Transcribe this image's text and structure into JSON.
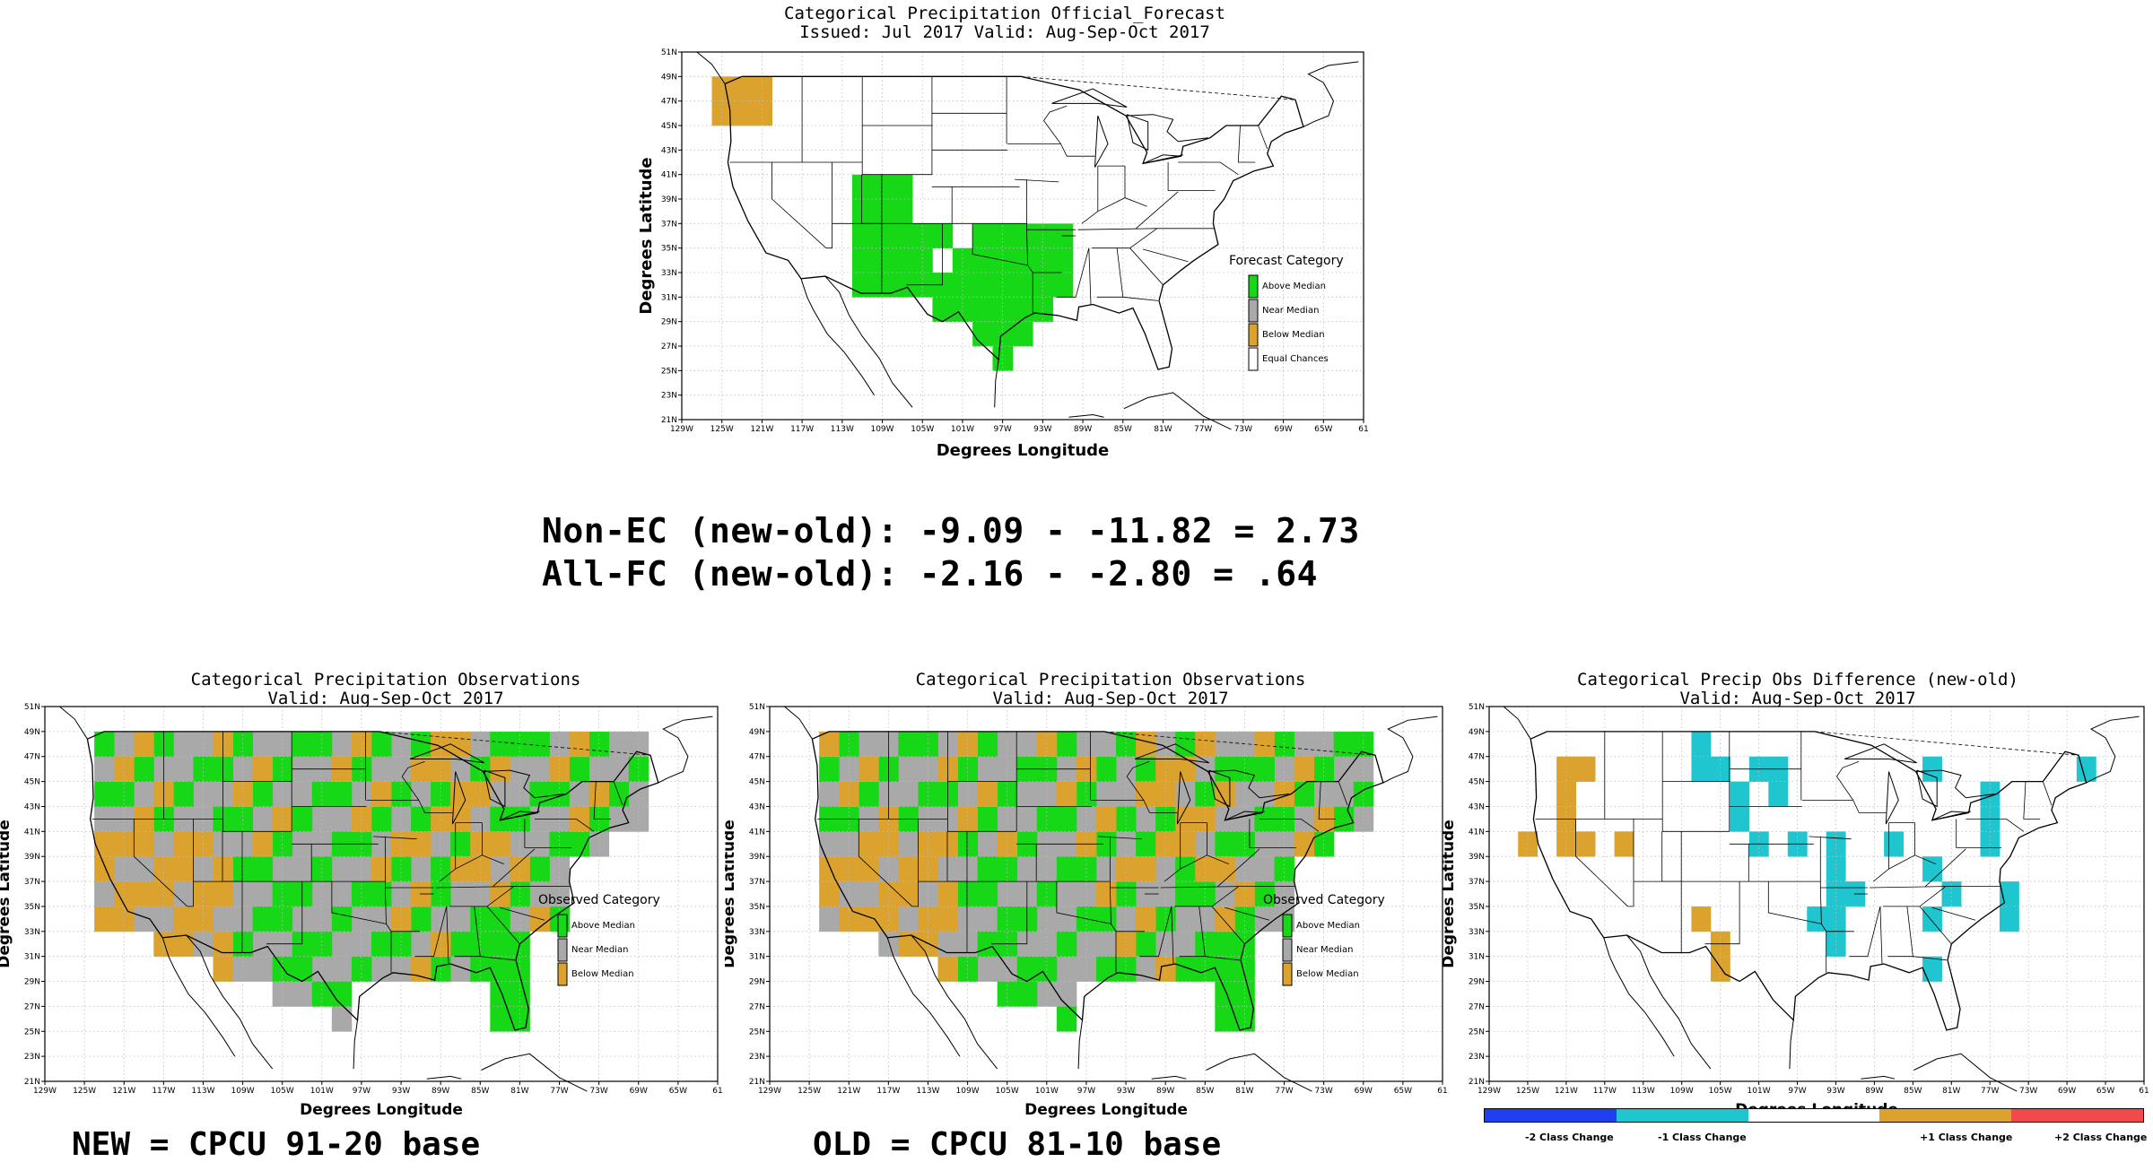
{
  "colors": {
    "above": "#17d817",
    "near": "#a9a9a9",
    "below": "#dba22d",
    "equal": "#ffffff",
    "minus2": "#1f3ff0",
    "minus1": "#1fc6cf",
    "plus1": "#dba22d",
    "plus2": "#f24a4a"
  },
  "axes": {
    "lon_ticks": [
      "129W",
      "125W",
      "121W",
      "117W",
      "113W",
      "109W",
      "105W",
      "101W",
      "97W",
      "93W",
      "89W",
      "85W",
      "81W",
      "77W",
      "73W",
      "69W",
      "65W",
      "61"
    ],
    "lat_ticks": [
      "21N",
      "23N",
      "25N",
      "27N",
      "29N",
      "31N",
      "33N",
      "35N",
      "37N",
      "39N",
      "41N",
      "43N",
      "45N",
      "47N",
      "49N",
      "51N"
    ],
    "xlabel": "Degrees Longitude",
    "ylabel": "Degrees Latitude"
  },
  "forecast_panel": {
    "title_line1": "Categorical Precipitation Official_Forecast",
    "title_line2": "Issued: Jul 2017 Valid: Aug-Sep-Oct 2017",
    "legend_title": "Forecast Category",
    "legend": [
      "Above Median",
      "Near Median",
      "Below Median",
      "Equal Chances"
    ],
    "regions": [
      {
        "category": "below",
        "cells": [
          [
            125,
            48
          ],
          [
            123,
            48
          ],
          [
            121,
            48
          ],
          [
            125,
            46
          ],
          [
            123,
            46
          ],
          [
            121,
            46
          ]
        ]
      },
      {
        "category": "above",
        "cells": [
          [
            111,
            40
          ],
          [
            109,
            40
          ],
          [
            107,
            40
          ],
          [
            111,
            38
          ],
          [
            109,
            38
          ],
          [
            107,
            38
          ],
          [
            111,
            36
          ],
          [
            109,
            36
          ],
          [
            107,
            36
          ],
          [
            105,
            36
          ],
          [
            103,
            36
          ],
          [
            111,
            34
          ],
          [
            109,
            34
          ],
          [
            107,
            34
          ],
          [
            105,
            34
          ],
          [
            99,
            36
          ],
          [
            97,
            36
          ],
          [
            95,
            36
          ],
          [
            93,
            36
          ],
          [
            91,
            36
          ],
          [
            111,
            32
          ],
          [
            109,
            32
          ],
          [
            107,
            32
          ],
          [
            105,
            32
          ],
          [
            101,
            34
          ],
          [
            99,
            34
          ],
          [
            97,
            34
          ],
          [
            95,
            34
          ],
          [
            93,
            34
          ],
          [
            91,
            34
          ],
          [
            103,
            32
          ],
          [
            101,
            32
          ],
          [
            99,
            32
          ],
          [
            97,
            32
          ],
          [
            95,
            32
          ],
          [
            93,
            32
          ],
          [
            91,
            32
          ],
          [
            103,
            30
          ],
          [
            101,
            30
          ],
          [
            99,
            30
          ],
          [
            97,
            30
          ],
          [
            95,
            30
          ],
          [
            93,
            30
          ],
          [
            99,
            28
          ],
          [
            97,
            28
          ],
          [
            95,
            28
          ],
          [
            97,
            26
          ]
        ]
      }
    ]
  },
  "stats": {
    "line1": "Non-EC (new-old): -9.09 - -11.82 = 2.73",
    "line2": "All-FC (new-old): -2.16 - -2.80 = .64"
  },
  "new_panel": {
    "title_line1": "Categorical Precipitation Observations",
    "title_line2": "Valid: Aug-Sep-Oct 2017",
    "legend_title": "Observed Category",
    "legend": [
      "Above Median",
      "Near Median",
      "Below Median"
    ],
    "caption": "NEW = CPCU 91-20 base"
  },
  "old_panel": {
    "title_line1": "Categorical Precipitation Observations",
    "title_line2": "Valid: Aug-Sep-Oct 2017",
    "legend_title": "Observed Category",
    "legend": [
      "Above Median",
      "Near Median",
      "Below Median"
    ],
    "caption": "OLD = CPCU 81-10 base"
  },
  "diff_panel": {
    "title_line1": "Categorical Precip Obs Difference (new-old)",
    "title_line2": "Valid: Aug-Sep-Oct 2017",
    "colorbar": [
      "-2 Class Change",
      "-1 Class Change",
      "+1 Class Change",
      "+2 Class Change"
    ],
    "plus1_cells": [
      [
        125,
        40
      ],
      [
        121,
        46
      ],
      [
        119,
        46
      ],
      [
        121,
        44
      ],
      [
        121,
        42
      ],
      [
        121,
        40
      ],
      [
        119,
        40
      ],
      [
        115,
        40
      ],
      [
        107,
        34
      ],
      [
        105,
        32
      ],
      [
        105,
        30
      ]
    ],
    "minus1_cells": [
      [
        107,
        48
      ],
      [
        107,
        46
      ],
      [
        105,
        46
      ],
      [
        101,
        46
      ],
      [
        99,
        46
      ],
      [
        99,
        44
      ],
      [
        103,
        44
      ],
      [
        103,
        42
      ],
      [
        101,
        40
      ],
      [
        97,
        40
      ],
      [
        93,
        40
      ],
      [
        87,
        40
      ],
      [
        83,
        38
      ],
      [
        93,
        38
      ],
      [
        93,
        36
      ],
      [
        91,
        36
      ],
      [
        93,
        34
      ],
      [
        95,
        34
      ],
      [
        93,
        32
      ],
      [
        83,
        34
      ],
      [
        83,
        30
      ],
      [
        77,
        44
      ],
      [
        77,
        42
      ],
      [
        77,
        40
      ],
      [
        75,
        36
      ],
      [
        75,
        34
      ],
      [
        67,
        46
      ],
      [
        83,
        46
      ],
      [
        81,
        36
      ]
    ]
  }
}
